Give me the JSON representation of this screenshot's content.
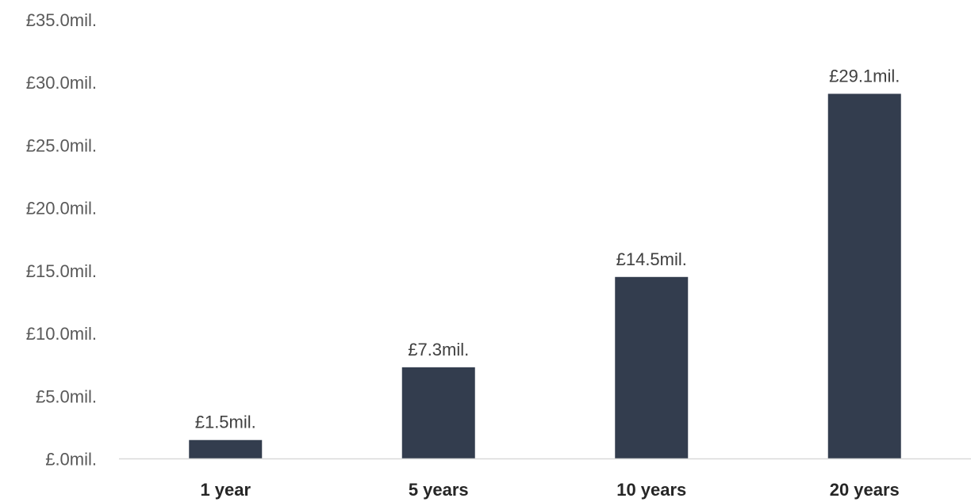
{
  "colors": {
    "bar": "#333d4e",
    "axis_line": "#d9d9d9"
  },
  "chart_data": {
    "type": "bar",
    "categories": [
      "1 year",
      "5 years",
      "10 years",
      "20 years"
    ],
    "values": [
      1.5,
      7.3,
      14.5,
      29.1
    ],
    "data_labels": [
      "£1.5mil.",
      "£7.3mil.",
      "£14.5mil.",
      "£29.1mil."
    ],
    "y_ticks": [
      0,
      5,
      10,
      15,
      20,
      25,
      30,
      35
    ],
    "y_tick_labels": [
      "£.0mil.",
      "£5.0mil.",
      "£10.0mil.",
      "£15.0mil.",
      "£20.0mil.",
      "£25.0mil.",
      "£30.0mil.",
      "£35.0mil."
    ],
    "ylim": [
      0,
      35
    ],
    "title": "",
    "xlabel": "",
    "ylabel": "",
    "grid": false,
    "legend": "none"
  }
}
